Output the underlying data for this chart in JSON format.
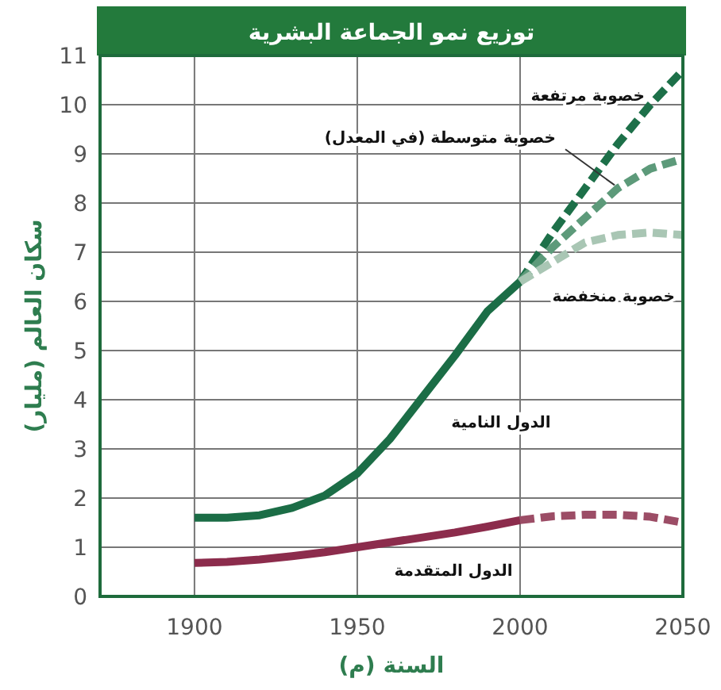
{
  "chart_data": {
    "type": "line",
    "title": "توزيع نمو الجماعة البشرية",
    "xlabel": "السنة (م)",
    "ylabel": "سكان العالم (مليار)",
    "xlim": [
      1871,
      2050
    ],
    "xticks": [
      1900,
      1950,
      2000,
      2050
    ],
    "ylim": [
      0,
      11
    ],
    "yticks": [
      0,
      1,
      2,
      3,
      4,
      5,
      6,
      7,
      8,
      9,
      10,
      11
    ],
    "grid": true,
    "marker": "none",
    "series": [
      {
        "name": "الدول النامية",
        "color": "#1b6d46",
        "line_style": "solid",
        "x": [
          1900,
          1910,
          1920,
          1930,
          1940,
          1950,
          1960,
          1970,
          1980,
          1990,
          2000
        ],
        "values": [
          1.6,
          1.6,
          1.65,
          1.8,
          2.05,
          2.5,
          3.2,
          4.05,
          4.9,
          5.8,
          6.4
        ]
      },
      {
        "name": "خصوبة مرتفعة",
        "color": "#1d7049",
        "line_style": "dashed",
        "x": [
          2000,
          2010,
          2020,
          2030,
          2040,
          2050
        ],
        "values": [
          6.4,
          7.4,
          8.3,
          9.2,
          10,
          10.7
        ]
      },
      {
        "name": "خصوبة متوسطة (في المعدل)",
        "color": "#5d9a7a",
        "line_style": "dashed",
        "x": [
          2000,
          2010,
          2020,
          2030,
          2040,
          2050
        ],
        "values": [
          6.4,
          7.1,
          7.7,
          8.3,
          8.7,
          8.9
        ]
      },
      {
        "name": "خصوبة منخفضة",
        "color": "#a9c6b4",
        "line_style": "dashed",
        "x": [
          2000,
          2010,
          2020,
          2030,
          2040,
          2050
        ],
        "values": [
          6.4,
          6.8,
          7.2,
          7.35,
          7.4,
          7.35
        ]
      },
      {
        "name": "الدول المتقدمة",
        "color": "#8c2c4c",
        "line_style": "solid",
        "x": [
          1900,
          1910,
          1920,
          1930,
          1940,
          1950,
          1960,
          1970,
          1980,
          1990,
          2000
        ],
        "values": [
          0.68,
          0.7,
          0.75,
          0.82,
          0.9,
          1,
          1.1,
          1.2,
          1.3,
          1.42,
          1.55
        ]
      },
      {
        "color": "#9c4d66",
        "line_style": "dashed",
        "x": [
          2000,
          2010,
          2020,
          2030,
          2040,
          2050
        ],
        "values": [
          1.55,
          1.63,
          1.66,
          1.66,
          1.62,
          1.5
        ]
      }
    ]
  }
}
